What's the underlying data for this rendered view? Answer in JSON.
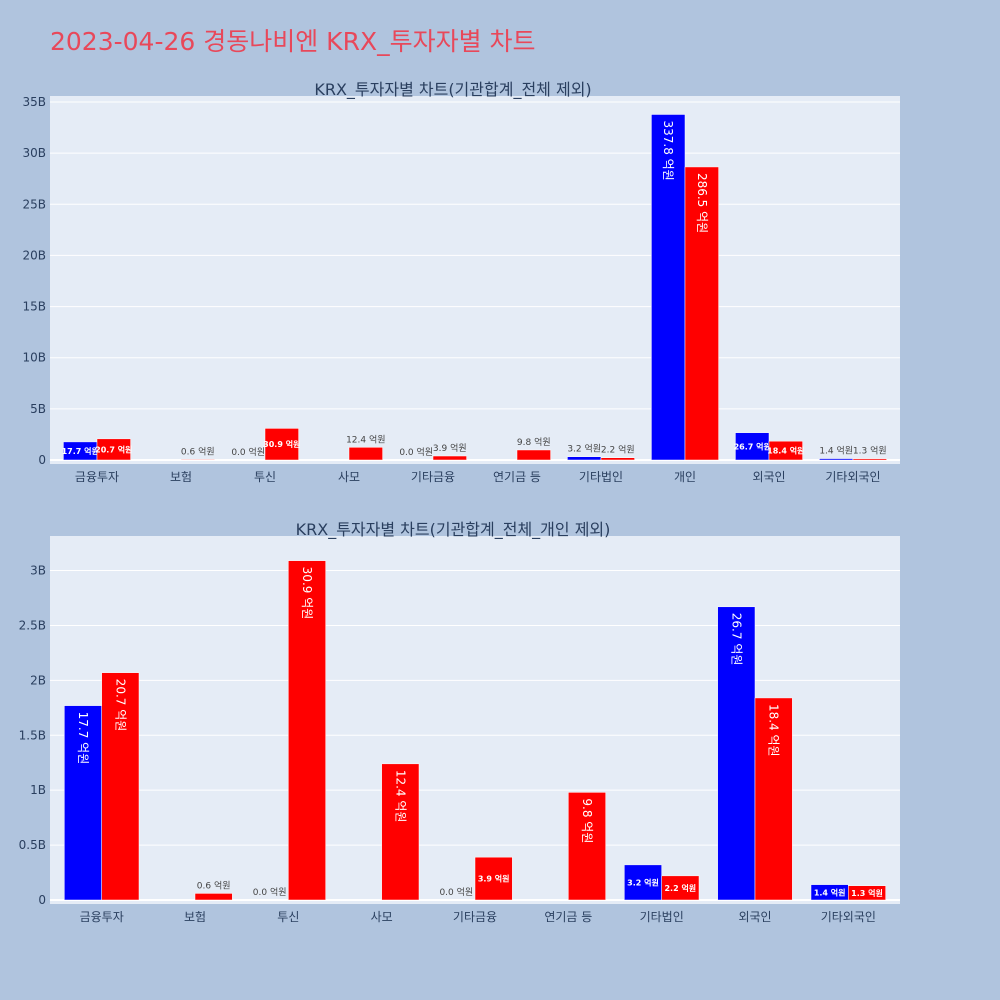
{
  "title": "2023-04-26 경동나비엔 KRX_투자자별 차트",
  "colors": {
    "buy": "#0000ff",
    "sell": "#ff0000",
    "plot_bg": "#e5ecf6",
    "page_bg": "#b0c4de",
    "title": "#e8485a"
  },
  "chart_data": [
    {
      "type": "bar",
      "title": "KRX_투자자별 차트(기관합계_전체 제외)",
      "categories": [
        "금융투자",
        "보험",
        "투신",
        "사모",
        "기타금융",
        "연기금 등",
        "기타법인",
        "개인",
        "외국인",
        "기타외국인"
      ],
      "series": [
        {
          "values": [
            1770000000,
            0,
            0,
            0,
            0,
            0,
            320000000,
            33780000000,
            2670000000,
            140000000
          ],
          "labels": [
            "17.7 억원",
            "",
            "0.0 억원",
            "",
            "0.0 억원",
            "",
            "3.2 억원",
            "337.8 억원",
            "26.7 억원",
            "1.4 억원"
          ]
        },
        {
          "values": [
            2070000000,
            60000000,
            3090000000,
            1240000000,
            390000000,
            980000000,
            220000000,
            28650000000,
            1840000000,
            130000000
          ],
          "labels": [
            "20.7 억원",
            "0.6 억원",
            "30.9 억원",
            "12.4 억원",
            "3.9 억원",
            "9.8 억원",
            "2.2 억원",
            "286.5 억원",
            "18.4 억원",
            "1.3 억원"
          ]
        }
      ],
      "ylim": [
        0,
        35000000000
      ],
      "yticks": [
        0,
        5000000000,
        10000000000,
        15000000000,
        20000000000,
        25000000000,
        30000000000,
        35000000000
      ],
      "ytick_labels": [
        "0",
        "5B",
        "10B",
        "15B",
        "20B",
        "25B",
        "30B",
        "35B"
      ],
      "grid": true
    },
    {
      "type": "bar",
      "title": "KRX_투자자별 차트(기관합계_전체_개인 제외)",
      "categories": [
        "금융투자",
        "보험",
        "투신",
        "사모",
        "기타금융",
        "연기금 등",
        "기타법인",
        "외국인",
        "기타외국인"
      ],
      "series": [
        {
          "values": [
            1770000000,
            0,
            0,
            0,
            0,
            0,
            320000000,
            2670000000,
            140000000
          ],
          "labels": [
            "17.7 억원",
            "",
            "0.0 억원",
            "",
            "0.0 억원",
            "",
            "3.2 억원",
            "26.7 억원",
            "1.4 억원"
          ]
        },
        {
          "values": [
            2070000000,
            60000000,
            3090000000,
            1240000000,
            390000000,
            980000000,
            220000000,
            1840000000,
            130000000
          ],
          "labels": [
            "20.7 억원",
            "0.6 억원",
            "30.9 억원",
            "12.4 억원",
            "3.9 억원",
            "9.8 억원",
            "2.2 억원",
            "18.4 억원",
            "1.3 억원"
          ]
        }
      ],
      "ylim": [
        0,
        3260000000
      ],
      "yticks": [
        0,
        500000000,
        1000000000,
        1500000000,
        2000000000,
        2500000000,
        3000000000
      ],
      "ytick_labels": [
        "0",
        "0.5B",
        "1B",
        "1.5B",
        "2B",
        "2.5B",
        "3B"
      ],
      "grid": true
    }
  ]
}
